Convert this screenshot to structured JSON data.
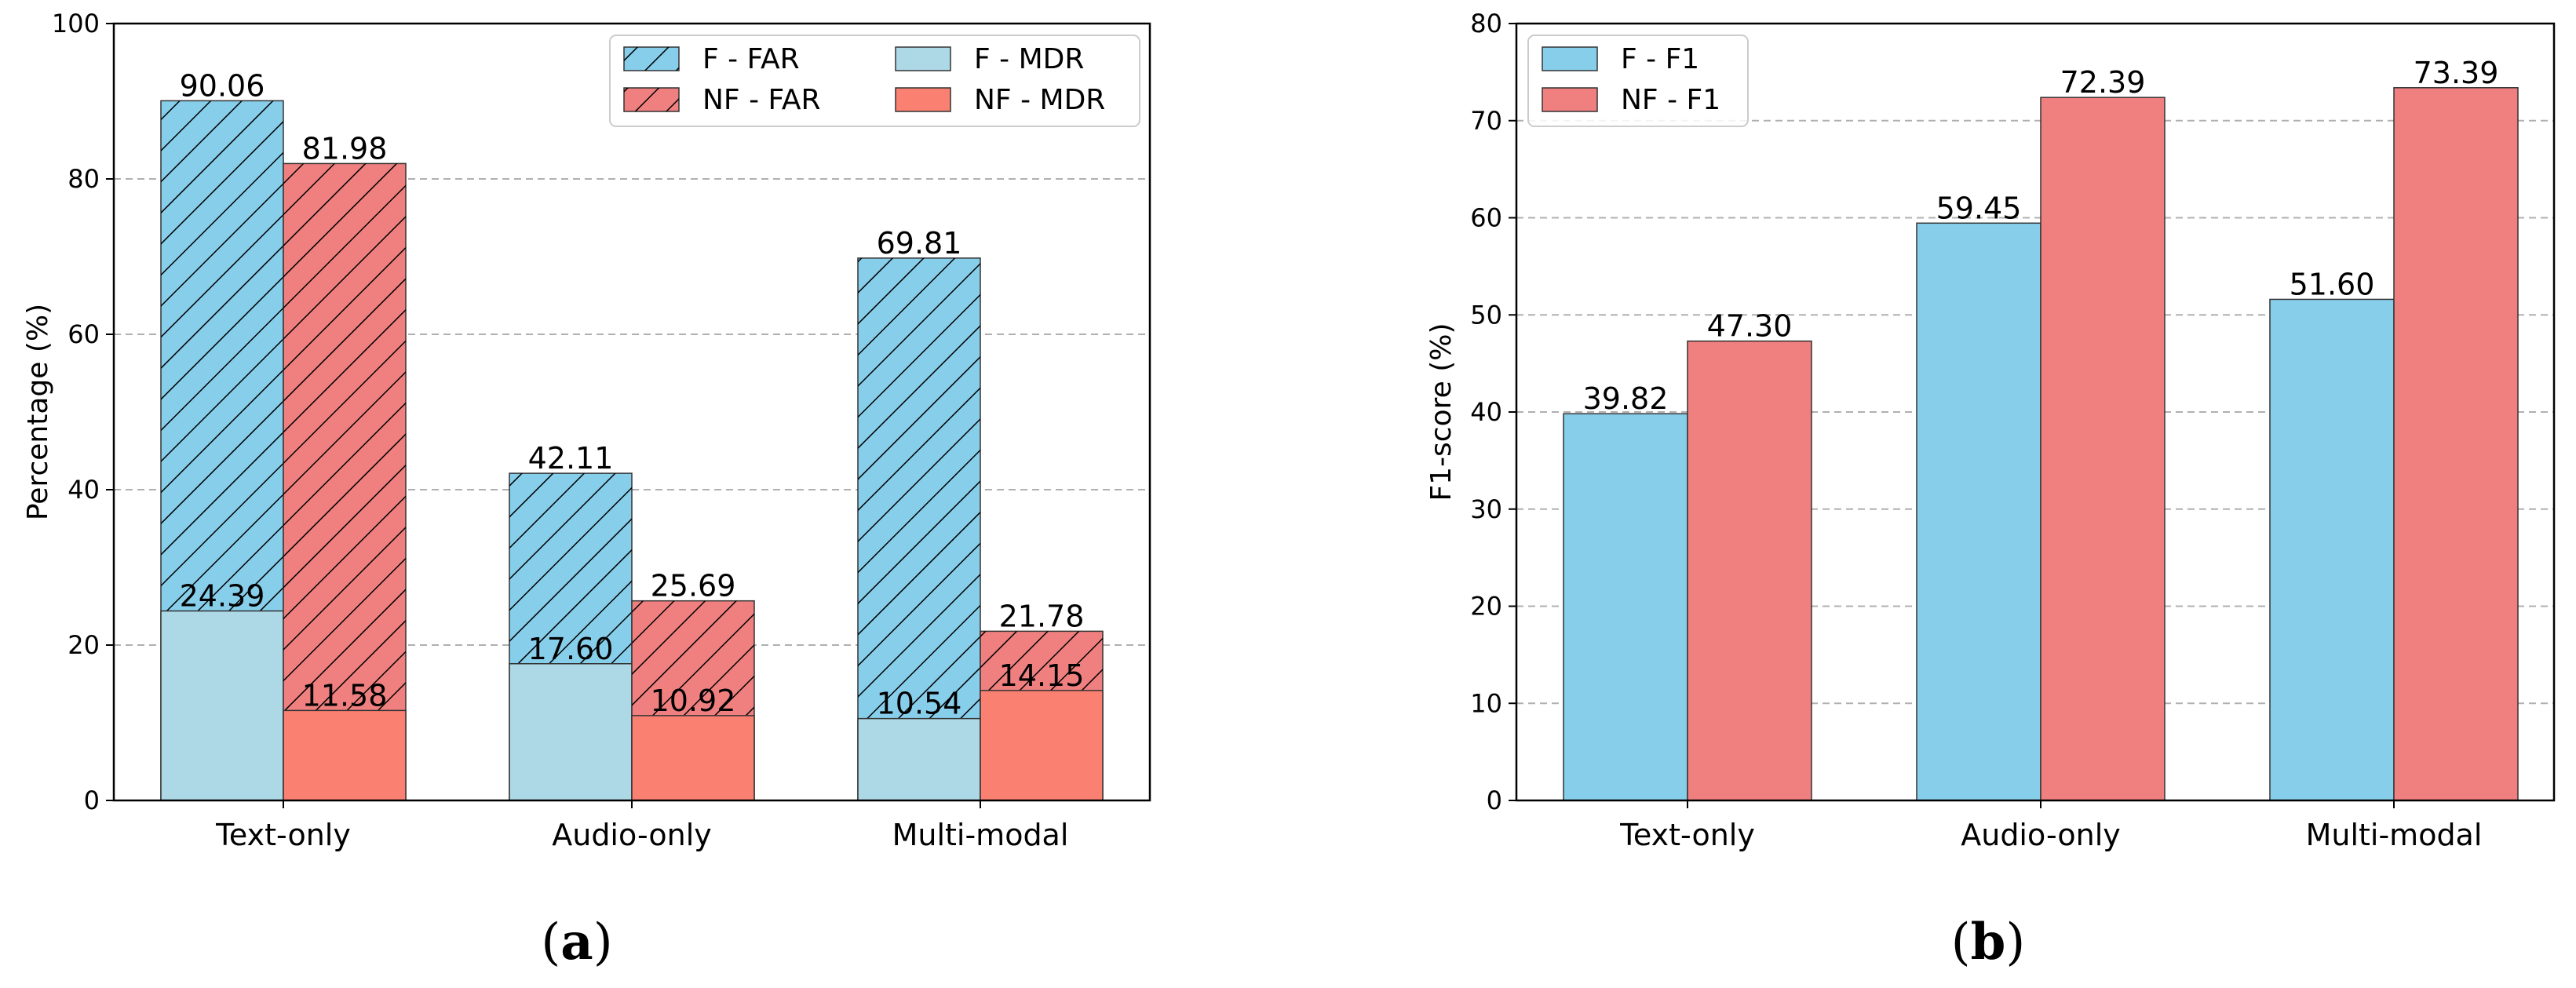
{
  "colors": {
    "f_far": "#87CEEB",
    "f_mdr": "#ADD8E6",
    "nf_far": "#F08080",
    "nf_mdr": "#FA8072",
    "f_f1": "#87CEEB",
    "nf_f1": "#F08080",
    "grid": "#b0b0b0"
  },
  "chart_data": [
    {
      "type": "bar",
      "panel_label": "a",
      "ylabel": "Percentage (%)",
      "ylim": [
        0,
        100
      ],
      "yticks": [
        0,
        20,
        40,
        60,
        80,
        100
      ],
      "categories": [
        "Text-only",
        "Audio-only",
        "Multi-modal"
      ],
      "grid": true,
      "legend_position": "top-right",
      "series": [
        {
          "name": "F - FAR",
          "group": "F",
          "layer": "FAR",
          "hatch": true,
          "color": "f_far",
          "values": [
            90.06,
            42.11,
            69.81
          ]
        },
        {
          "name": "NF - FAR",
          "group": "NF",
          "layer": "FAR",
          "hatch": true,
          "color": "nf_far",
          "values": [
            81.98,
            25.69,
            21.78
          ]
        },
        {
          "name": "F - MDR",
          "group": "F",
          "layer": "MDR",
          "hatch": false,
          "color": "f_mdr",
          "values": [
            24.39,
            17.6,
            10.54
          ]
        },
        {
          "name": "NF - MDR",
          "group": "NF",
          "layer": "MDR",
          "hatch": false,
          "color": "nf_mdr",
          "values": [
            11.58,
            10.92,
            14.15
          ]
        }
      ],
      "legend_order": [
        "F - FAR",
        "NF - FAR",
        "F - MDR",
        "NF - MDR"
      ]
    },
    {
      "type": "bar",
      "panel_label": "b",
      "ylabel": "F1-score (%)",
      "ylim": [
        0,
        80
      ],
      "yticks": [
        0,
        10,
        20,
        30,
        40,
        50,
        60,
        70,
        80
      ],
      "categories": [
        "Text-only",
        "Audio-only",
        "Multi-modal"
      ],
      "grid": true,
      "legend_position": "top-left",
      "series": [
        {
          "name": "F - F1",
          "color": "f_f1",
          "values": [
            39.82,
            59.45,
            51.6
          ]
        },
        {
          "name": "NF - F1",
          "color": "nf_f1",
          "values": [
            47.3,
            72.39,
            73.39
          ]
        }
      ]
    }
  ]
}
